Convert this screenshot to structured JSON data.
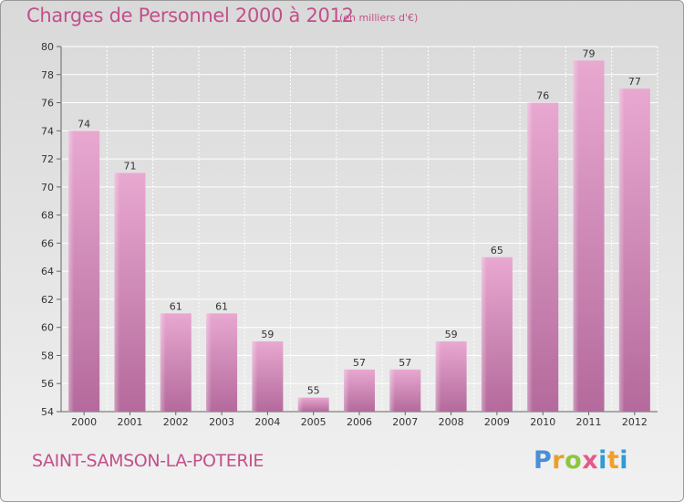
{
  "header": {
    "title": "Charges de Personnel 2000 à 2012",
    "unit": "(en milliers d'€)"
  },
  "footer": {
    "commune": "SAINT-SAMSON-LA-POTERIE",
    "logo_text": "Proxiti"
  },
  "colors": {
    "title": "#c2508a",
    "bar_top": "#e8a8d0",
    "bar_bottom": "#b46a9c",
    "grid": "#ffffff"
  },
  "chart_data": {
    "type": "bar",
    "title": "Charges de Personnel 2000 à 2012",
    "subtitle": "(en milliers d'€)",
    "xlabel": "",
    "ylabel": "",
    "categories": [
      "2000",
      "2001",
      "2002",
      "2003",
      "2004",
      "2005",
      "2006",
      "2007",
      "2008",
      "2009",
      "2010",
      "2011",
      "2012"
    ],
    "values": [
      74,
      71,
      61,
      61,
      59,
      55,
      57,
      57,
      59,
      65,
      76,
      79,
      77
    ],
    "ylim": [
      54,
      80
    ],
    "yticks": [
      54,
      56,
      58,
      60,
      62,
      64,
      66,
      68,
      70,
      72,
      74,
      76,
      78,
      80
    ],
    "grid": true,
    "data_labels": true
  }
}
